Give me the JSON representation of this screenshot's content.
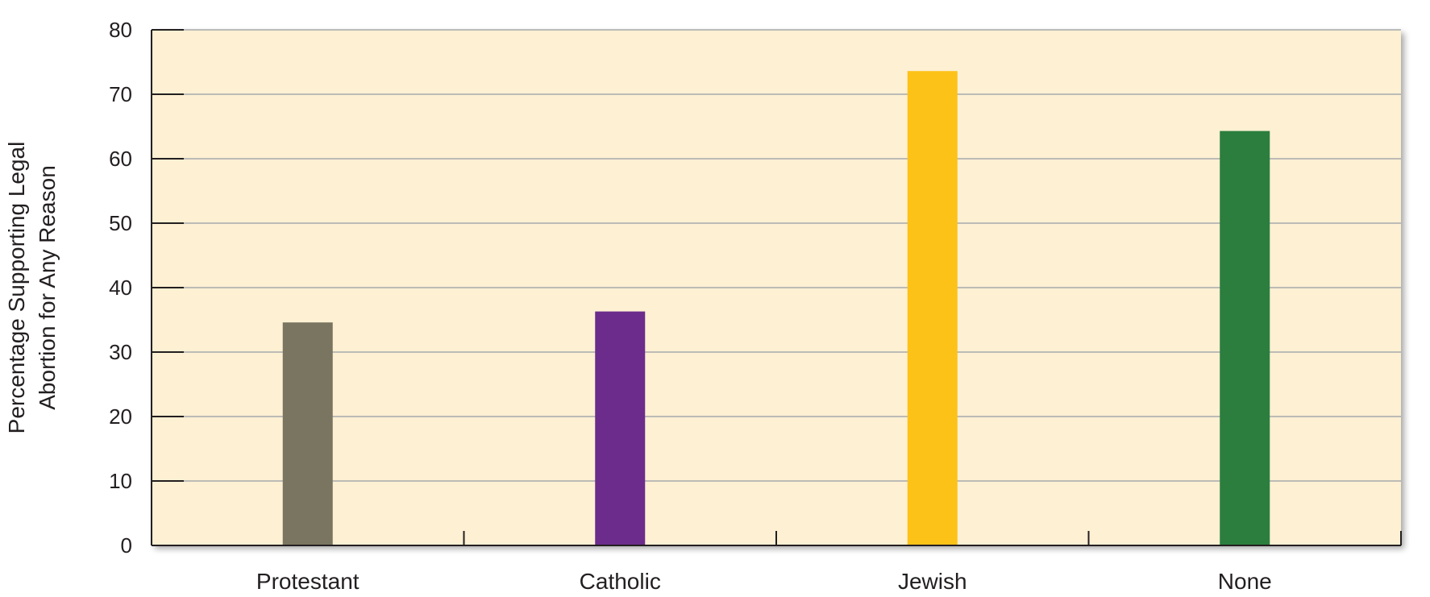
{
  "chart_data": {
    "type": "bar",
    "categories": [
      "Protestant",
      "Catholic",
      "Jewish",
      "None"
    ],
    "values": [
      34.6,
      36.3,
      73.6,
      64.3
    ],
    "colors": [
      "#7a7560",
      "#6b2c8c",
      "#fdc218",
      "#2c7e3e"
    ],
    "ylabel_line1": "Percentage Supporting Legal",
    "ylabel_line2": "Abortion for Any Reason",
    "ylim": [
      0,
      80
    ],
    "yticks": [
      0,
      10,
      20,
      30,
      40,
      50,
      60,
      70,
      80
    ],
    "grid": true,
    "plot_background": "#fdf0d3",
    "gridline_color": "#a7a9ac",
    "axis_color": "#231f20"
  }
}
